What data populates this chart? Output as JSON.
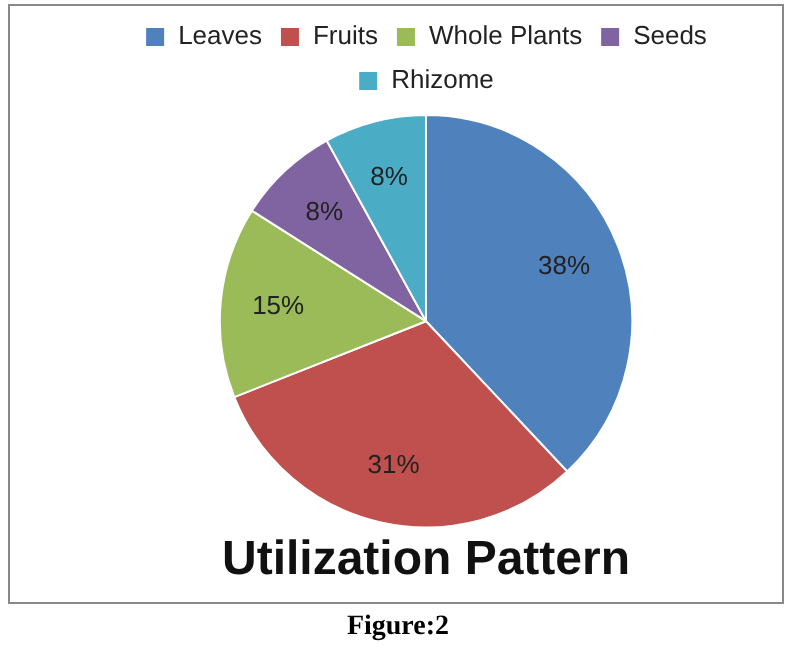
{
  "chart_data": {
    "type": "pie",
    "title": "Utilization Pattern",
    "categories": [
      "Leaves",
      "Fruits",
      "Whole Plants",
      "Seeds",
      "Rhizome"
    ],
    "values": [
      38,
      31,
      15,
      8,
      8
    ],
    "colors": [
      "#4f81bd",
      "#c0504d",
      "#9bbb59",
      "#8064a2",
      "#4bacc6"
    ],
    "value_labels": [
      "38%",
      "31%",
      "15%",
      "8%",
      "8%"
    ],
    "legend": "top",
    "annotations": [
      "Figure:2"
    ]
  }
}
